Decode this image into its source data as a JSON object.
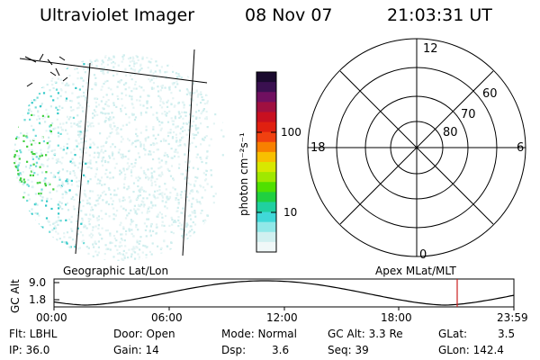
{
  "header": {
    "instrument": "Ultraviolet Imager",
    "date": "08 Nov 07",
    "time": "21:03:31 UT"
  },
  "colorbar": {
    "unit_label": "photon cm⁻²s⁻¹",
    "ticks": [
      "100",
      "10"
    ],
    "colors": [
      "#1a0a2e",
      "#3a1050",
      "#701060",
      "#a01040",
      "#c81020",
      "#e02010",
      "#f04010",
      "#f88000",
      "#f8c000",
      "#d8e800",
      "#a0e800",
      "#50e000",
      "#20d040",
      "#20d0a0",
      "#40d8d8",
      "#90e8e8",
      "#d0f0f0",
      "#f0f8f8"
    ]
  },
  "image_panel": {
    "caption": "Geographic Lat/Lon"
  },
  "polar_plot": {
    "caption": "Apex MLat/MLT",
    "hour_labels": [
      "12",
      "18",
      "6",
      "0"
    ],
    "lat_labels": [
      "60",
      "70",
      "80"
    ]
  },
  "altitude_plot": {
    "ylabel": "GC Alt",
    "yticks": [
      "9.0",
      "1.8"
    ],
    "xticks": [
      "00:00",
      "06:00",
      "12:00",
      "18:00",
      "23:59"
    ],
    "current_time_marker_color": "#cc2020"
  },
  "status": {
    "flt": "Flt: LBHL",
    "ip": "IP: 36.0",
    "door": "Door: Open",
    "gain": "Gain: 14",
    "mode": "Mode: Normal",
    "dsp_label": "Dsp:",
    "dsp_value": "3.6",
    "gc_alt": "GC Alt: 3.3 Re",
    "seq": "Seq: 39",
    "glat_label": "GLat:",
    "glat_value": "3.5",
    "glon": "GLon: 142.4"
  }
}
